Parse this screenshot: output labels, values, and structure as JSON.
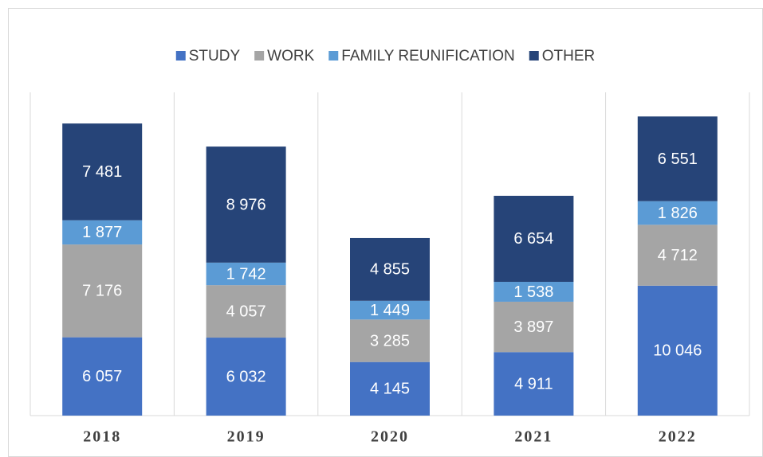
{
  "chart_data": {
    "type": "bar",
    "stacked": true,
    "categories": [
      "2018",
      "2019",
      "2020",
      "2021",
      "2022"
    ],
    "series": [
      {
        "name": "STUDY",
        "color": "#4472c4",
        "values": [
          6057,
          6032,
          4145,
          4911,
          10046
        ],
        "value_labels": [
          "6 057",
          "6 032",
          "4 145",
          "4 911",
          "10 046"
        ]
      },
      {
        "name": "WORK",
        "color": "#a5a5a5",
        "values": [
          7176,
          4057,
          3285,
          3897,
          4712
        ],
        "value_labels": [
          "7 176",
          "4 057",
          "3 285",
          "3 897",
          "4 712"
        ]
      },
      {
        "name": "FAMILY REUNIFICATION",
        "color": "#5b9bd5",
        "values": [
          1877,
          1742,
          1449,
          1538,
          1826
        ],
        "value_labels": [
          "1 877",
          "1 742",
          "1 449",
          "1 538",
          "1 826"
        ]
      },
      {
        "name": "OTHER",
        "color": "#264478",
        "values": [
          7481,
          8976,
          4855,
          6654,
          6551
        ],
        "value_labels": [
          "7 481",
          "8 976",
          "4 855",
          "6 654",
          "6 551"
        ]
      }
    ],
    "ylim": [
      0,
      25000
    ],
    "legend": "top"
  }
}
